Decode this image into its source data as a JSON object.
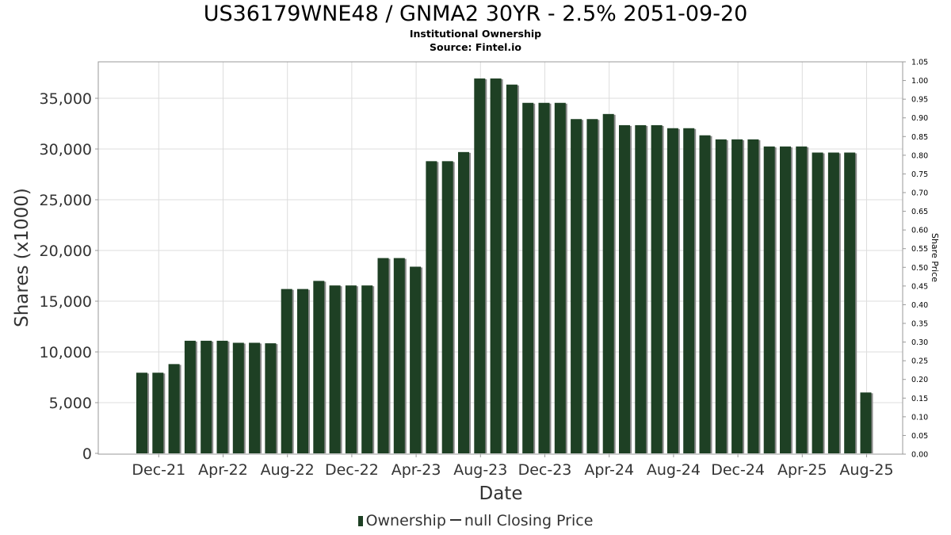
{
  "header": {
    "title": "US36179WNE48 / GNMA2 30YR - 2.5% 2051-09-20",
    "subtitle": "Institutional Ownership",
    "source": "Source: Fintel.io"
  },
  "legend": {
    "ownership_label": "Ownership",
    "price_label": "null Closing Price"
  },
  "colors": {
    "bar": "#1e4024",
    "bar_shadow": "#8a8a8a",
    "grid": "#dddddd"
  },
  "chart_data": {
    "type": "bar",
    "title": "US36179WNE48 / GNMA2 30YR - 2.5% 2051-09-20",
    "subtitle": "Institutional Ownership",
    "xlabel": "Date",
    "ylabel": "Shares (x1000)",
    "y2label": "Share Price",
    "ylim": [
      0,
      38500
    ],
    "y2lim": [
      0,
      1.05
    ],
    "yticks": [
      "0",
      "5,000",
      "10,000",
      "15,000",
      "20,000",
      "25,000",
      "30,000",
      "35,000"
    ],
    "y2ticks": [
      "0.00",
      "0.05",
      "0.10",
      "0.15",
      "0.20",
      "0.25",
      "0.30",
      "0.35",
      "0.40",
      "0.45",
      "0.50",
      "0.55",
      "0.60",
      "0.65",
      "0.70",
      "0.75",
      "0.80",
      "0.85",
      "0.90",
      "0.95",
      "1.00",
      "1.05"
    ],
    "xticks": [
      "Dec-21",
      "Apr-22",
      "Aug-22",
      "Dec-22",
      "Apr-23",
      "Aug-23",
      "Dec-23",
      "Apr-24",
      "Aug-24",
      "Dec-24",
      "Apr-25",
      "Aug-25"
    ],
    "grid": true,
    "legend_position": "bottom",
    "series": [
      {
        "name": "Ownership",
        "values": [
          7950,
          7950,
          8800,
          11100,
          11100,
          11100,
          10900,
          10900,
          10850,
          16200,
          16200,
          17000,
          16550,
          16550,
          16550,
          19250,
          19250,
          18400,
          28800,
          28800,
          29700,
          36950,
          36950,
          36350,
          34550,
          34550,
          34550,
          32950,
          32950,
          33450,
          32350,
          32350,
          32350,
          32050,
          32050,
          31350,
          30950,
          30950,
          30950,
          30250,
          30250,
          30250,
          29650,
          29650,
          29650,
          6000
        ]
      },
      {
        "name": "null Closing Price",
        "values": []
      }
    ]
  }
}
